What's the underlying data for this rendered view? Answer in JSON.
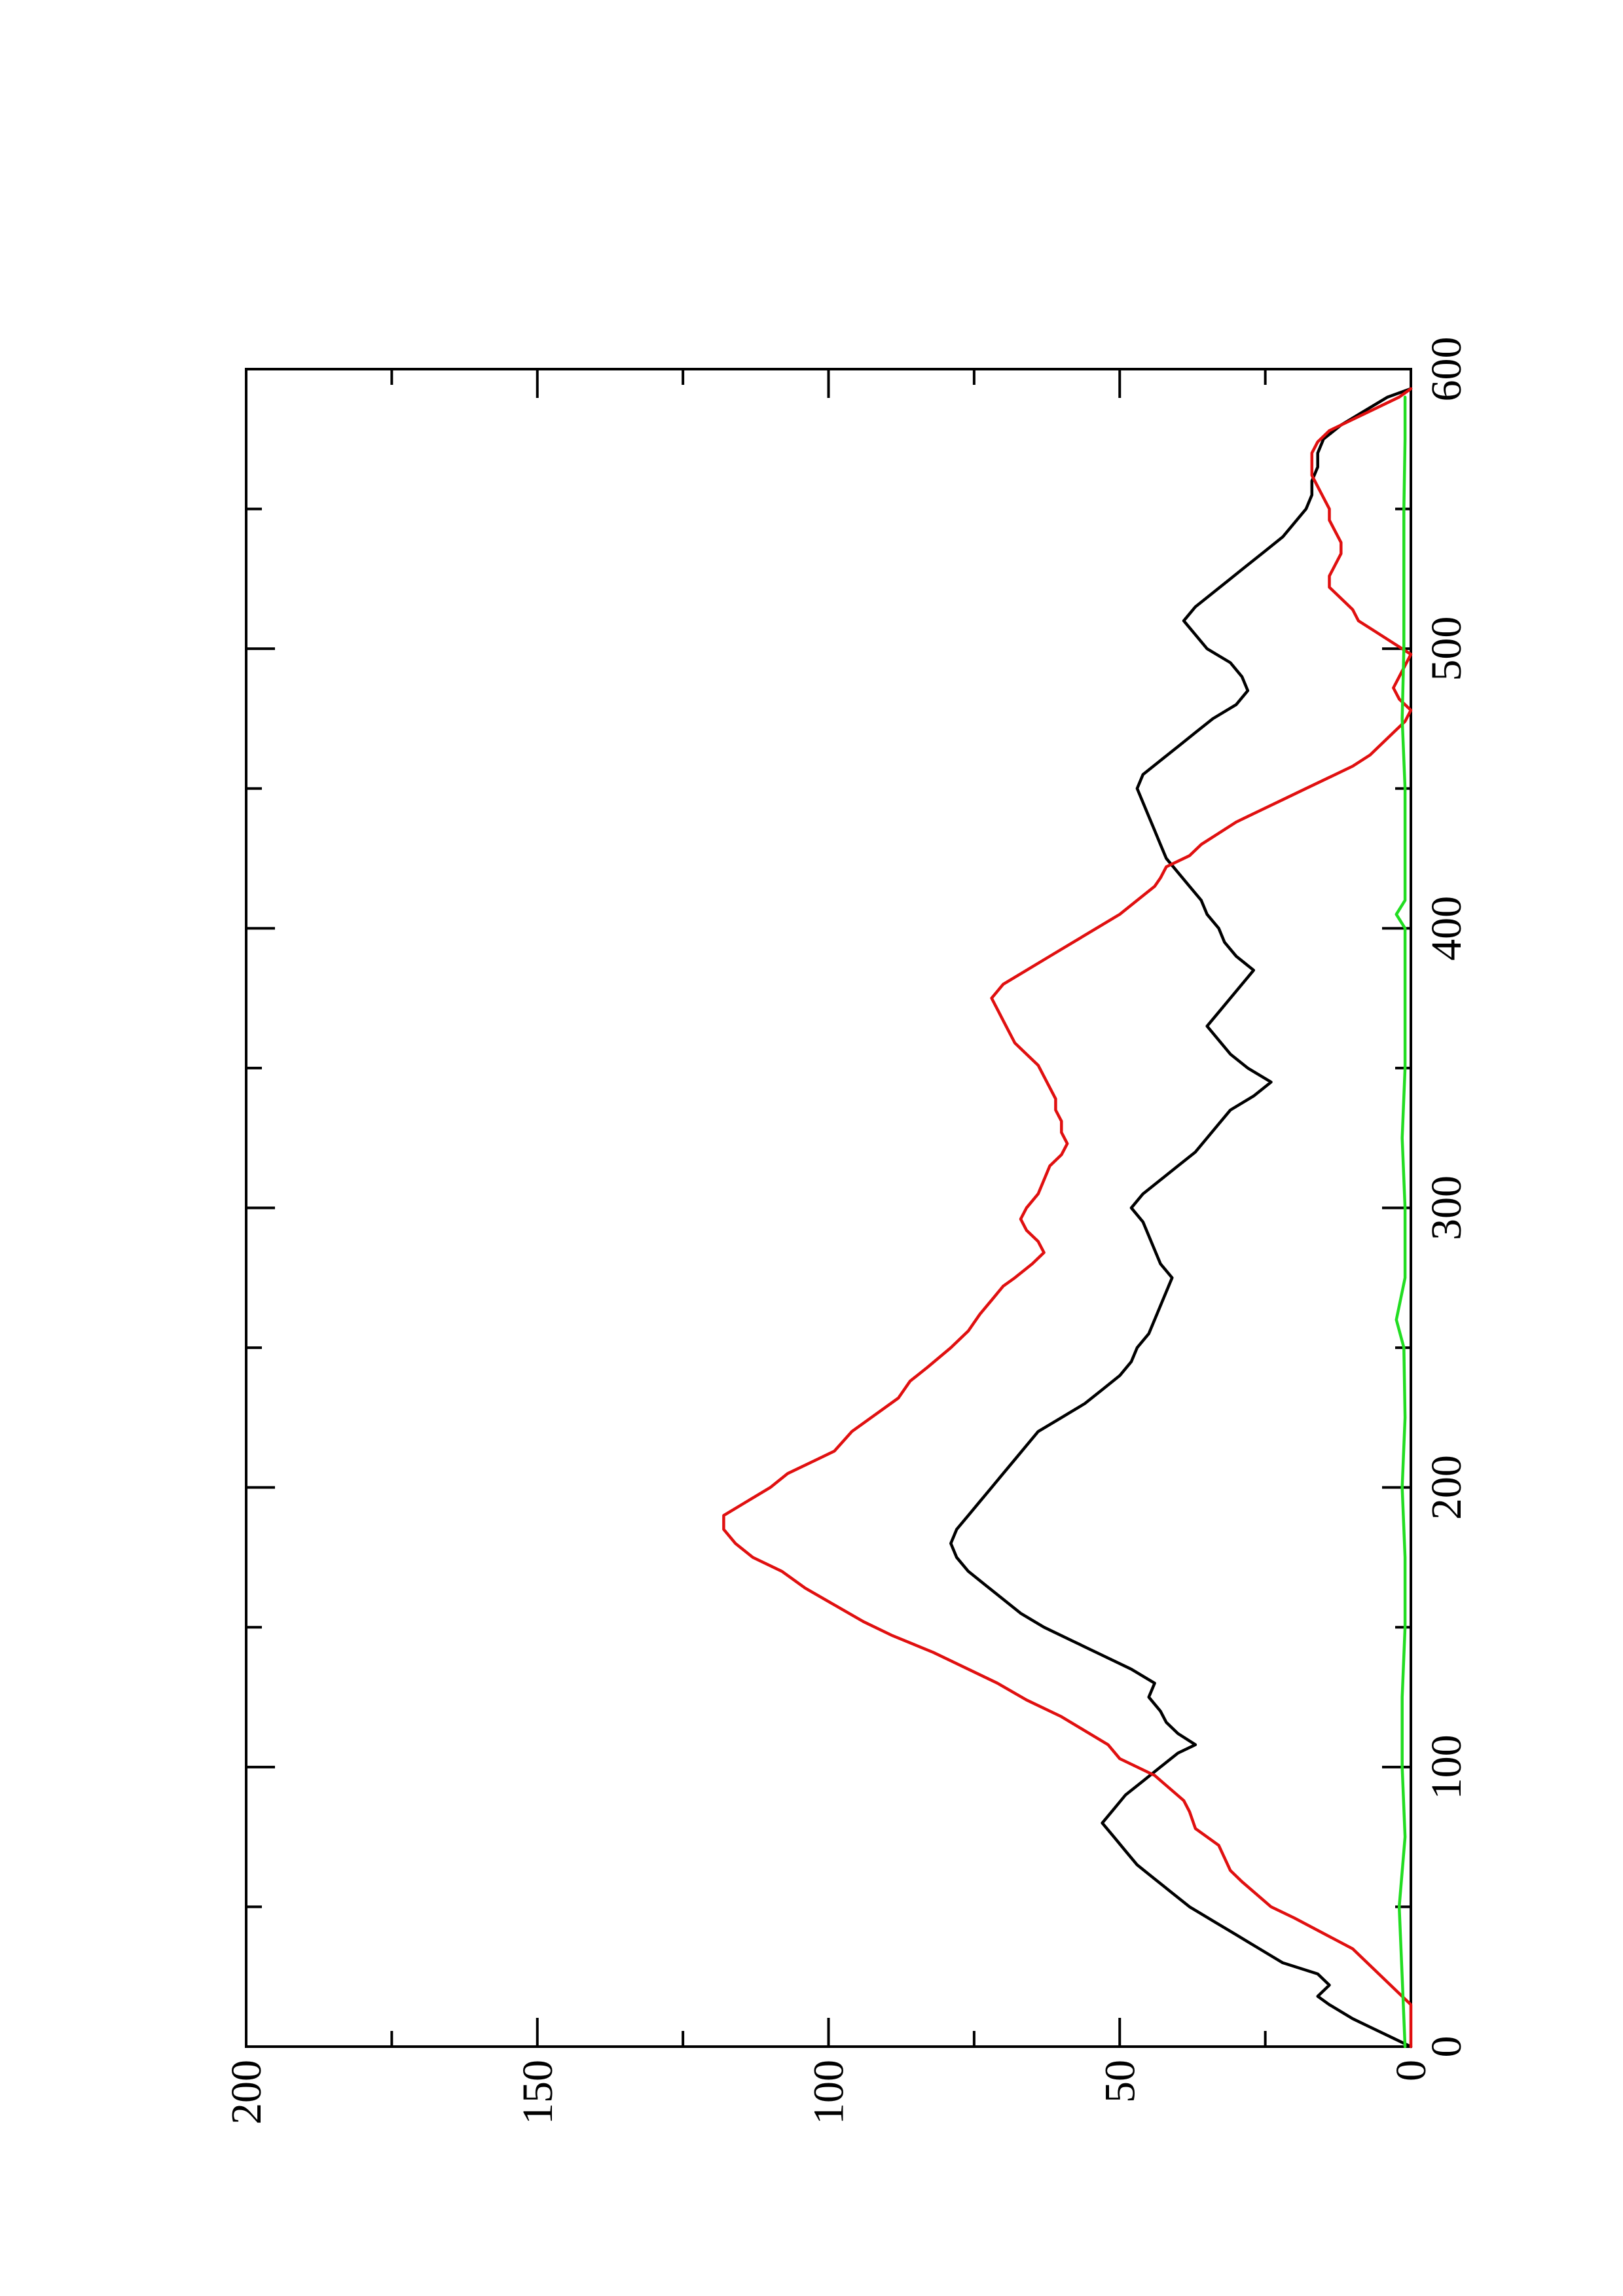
{
  "chart_data": {
    "type": "line",
    "orientation": "rotated 90 degrees counter-clockwise (x axis runs vertically, y axis horizontally)",
    "title": "",
    "xlabel": "",
    "ylabel": "",
    "xlim": [
      0,
      600
    ],
    "ylim": [
      0,
      200
    ],
    "x_ticks": [
      "0",
      "100",
      "200",
      "300",
      "400",
      "500",
      "600"
    ],
    "y_ticks": [
      "0",
      "50",
      "100",
      "150",
      "200"
    ],
    "x_minor_ticks": [
      50,
      150,
      250,
      350,
      450,
      550
    ],
    "y_minor_ticks": [
      25,
      75,
      125,
      175
    ],
    "grid": false,
    "legend": "none",
    "series": [
      {
        "color": "#000000",
        "points": [
          [
            0,
            0
          ],
          [
            3,
            3
          ],
          [
            7,
            7
          ],
          [
            10,
            10
          ],
          [
            15,
            14
          ],
          [
            18,
            16
          ],
          [
            22,
            14
          ],
          [
            26,
            16
          ],
          [
            30,
            22
          ],
          [
            35,
            26
          ],
          [
            40,
            30
          ],
          [
            45,
            34
          ],
          [
            50,
            38
          ],
          [
            55,
            41
          ],
          [
            60,
            44
          ],
          [
            65,
            47
          ],
          [
            70,
            49
          ],
          [
            75,
            51
          ],
          [
            80,
            53
          ],
          [
            85,
            51
          ],
          [
            90,
            49
          ],
          [
            95,
            46
          ],
          [
            100,
            43
          ],
          [
            105,
            40
          ],
          [
            108,
            37
          ],
          [
            112,
            40
          ],
          [
            116,
            42
          ],
          [
            120,
            43
          ],
          [
            125,
            45
          ],
          [
            130,
            44
          ],
          [
            135,
            48
          ],
          [
            140,
            53
          ],
          [
            145,
            58
          ],
          [
            150,
            63
          ],
          [
            155,
            67
          ],
          [
            160,
            70
          ],
          [
            165,
            73
          ],
          [
            170,
            76
          ],
          [
            175,
            78
          ],
          [
            180,
            79
          ],
          [
            185,
            78
          ],
          [
            190,
            76
          ],
          [
            195,
            74
          ],
          [
            200,
            72
          ],
          [
            205,
            70
          ],
          [
            210,
            68
          ],
          [
            215,
            66
          ],
          [
            220,
            64
          ],
          [
            225,
            60
          ],
          [
            230,
            56
          ],
          [
            235,
            53
          ],
          [
            240,
            50
          ],
          [
            245,
            48
          ],
          [
            250,
            47
          ],
          [
            255,
            45
          ],
          [
            260,
            44
          ],
          [
            265,
            43
          ],
          [
            270,
            42
          ],
          [
            275,
            41
          ],
          [
            280,
            43
          ],
          [
            285,
            44
          ],
          [
            290,
            45
          ],
          [
            295,
            46
          ],
          [
            300,
            48
          ],
          [
            305,
            46
          ],
          [
            310,
            43
          ],
          [
            315,
            40
          ],
          [
            320,
            37
          ],
          [
            325,
            35
          ],
          [
            330,
            33
          ],
          [
            335,
            31
          ],
          [
            340,
            27
          ],
          [
            345,
            24
          ],
          [
            350,
            28
          ],
          [
            355,
            31
          ],
          [
            360,
            33
          ],
          [
            365,
            35
          ],
          [
            370,
            33
          ],
          [
            375,
            31
          ],
          [
            380,
            29
          ],
          [
            385,
            27
          ],
          [
            390,
            30
          ],
          [
            395,
            32
          ],
          [
            400,
            33
          ],
          [
            405,
            35
          ],
          [
            410,
            36
          ],
          [
            415,
            38
          ],
          [
            420,
            40
          ],
          [
            425,
            42
          ],
          [
            430,
            43
          ],
          [
            435,
            44
          ],
          [
            440,
            45
          ],
          [
            445,
            46
          ],
          [
            450,
            47
          ],
          [
            455,
            46
          ],
          [
            460,
            43
          ],
          [
            465,
            40
          ],
          [
            470,
            37
          ],
          [
            475,
            34
          ],
          [
            480,
            30
          ],
          [
            485,
            28
          ],
          [
            490,
            29
          ],
          [
            495,
            31
          ],
          [
            500,
            35
          ],
          [
            505,
            37
          ],
          [
            510,
            39
          ],
          [
            515,
            37
          ],
          [
            520,
            34
          ],
          [
            525,
            31
          ],
          [
            530,
            28
          ],
          [
            535,
            25
          ],
          [
            540,
            22
          ],
          [
            545,
            20
          ],
          [
            550,
            18
          ],
          [
            555,
            17
          ],
          [
            560,
            17
          ],
          [
            565,
            16
          ],
          [
            570,
            16
          ],
          [
            575,
            15
          ],
          [
            580,
            12
          ],
          [
            585,
            8
          ],
          [
            590,
            4
          ],
          [
            593,
            0
          ]
        ]
      },
      {
        "color": "#e01010",
        "points": [
          [
            0,
            0
          ],
          [
            15,
            0
          ],
          [
            35,
            10
          ],
          [
            46,
            20
          ],
          [
            50,
            24
          ],
          [
            59,
            29
          ],
          [
            63,
            31
          ],
          [
            72,
            33
          ],
          [
            78,
            37
          ],
          [
            84,
            38
          ],
          [
            88,
            39
          ],
          [
            97,
            44
          ],
          [
            103,
            50
          ],
          [
            108,
            52
          ],
          [
            113,
            56
          ],
          [
            118,
            60
          ],
          [
            124,
            66
          ],
          [
            130,
            71
          ],
          [
            135,
            76
          ],
          [
            141,
            82
          ],
          [
            147,
            89
          ],
          [
            152,
            94
          ],
          [
            158,
            99
          ],
          [
            164,
            104
          ],
          [
            170,
            108
          ],
          [
            175,
            113
          ],
          [
            180,
            116
          ],
          [
            185,
            118
          ],
          [
            190,
            118
          ],
          [
            195,
            114
          ],
          [
            200,
            110
          ],
          [
            205,
            107
          ],
          [
            210,
            102
          ],
          [
            213,
            99
          ],
          [
            220,
            96
          ],
          [
            226,
            92
          ],
          [
            232,
            88
          ],
          [
            238,
            86
          ],
          [
            243,
            83
          ],
          [
            250,
            79
          ],
          [
            256,
            76
          ],
          [
            262,
            74
          ],
          [
            267,
            72
          ],
          [
            272,
            70
          ],
          [
            275,
            68
          ],
          [
            280,
            65
          ],
          [
            284,
            63
          ],
          [
            288,
            64
          ],
          [
            292,
            66
          ],
          [
            296,
            67
          ],
          [
            300,
            66
          ],
          [
            305,
            64
          ],
          [
            310,
            63
          ],
          [
            315,
            62
          ],
          [
            319,
            60
          ],
          [
            323,
            59
          ],
          [
            327,
            60
          ],
          [
            331,
            60
          ],
          [
            335,
            61
          ],
          [
            339,
            61
          ],
          [
            343,
            62
          ],
          [
            347,
            63
          ],
          [
            351,
            64
          ],
          [
            355,
            66
          ],
          [
            359,
            68
          ],
          [
            363,
            69
          ],
          [
            367,
            70
          ],
          [
            371,
            71
          ],
          [
            375,
            72
          ],
          [
            380,
            70
          ],
          [
            385,
            66
          ],
          [
            390,
            62
          ],
          [
            395,
            58
          ],
          [
            400,
            54
          ],
          [
            405,
            50
          ],
          [
            410,
            47
          ],
          [
            415,
            44
          ],
          [
            418,
            43
          ],
          [
            422,
            42
          ],
          [
            426,
            38
          ],
          [
            430,
            36
          ],
          [
            434,
            33
          ],
          [
            438,
            30
          ],
          [
            442,
            26
          ],
          [
            446,
            22
          ],
          [
            450,
            18
          ],
          [
            454,
            14
          ],
          [
            458,
            10
          ],
          [
            462,
            7
          ],
          [
            466,
            5
          ],
          [
            470,
            3
          ],
          [
            474,
            1
          ],
          [
            478,
            0
          ],
          [
            482,
            2
          ],
          [
            486,
            3
          ],
          [
            490,
            2
          ],
          [
            494,
            1
          ],
          [
            498,
            0
          ],
          [
            502,
            3
          ],
          [
            506,
            6
          ],
          [
            510,
            9
          ],
          [
            514,
            10
          ],
          [
            518,
            12
          ],
          [
            522,
            14
          ],
          [
            526,
            14
          ],
          [
            530,
            13
          ],
          [
            534,
            12
          ],
          [
            538,
            12
          ],
          [
            542,
            13
          ],
          [
            546,
            14
          ],
          [
            550,
            14
          ],
          [
            554,
            15
          ],
          [
            558,
            16
          ],
          [
            562,
            17
          ],
          [
            566,
            17
          ],
          [
            570,
            17
          ],
          [
            574,
            16
          ],
          [
            578,
            14
          ],
          [
            582,
            10
          ],
          [
            586,
            6
          ],
          [
            590,
            2
          ],
          [
            593,
            0
          ]
        ]
      },
      {
        "color": "#22dd22",
        "points": [
          [
            0,
            1
          ],
          [
            25,
            1.5
          ],
          [
            50,
            2
          ],
          [
            75,
            1
          ],
          [
            100,
            1.5
          ],
          [
            125,
            1.5
          ],
          [
            150,
            1
          ],
          [
            175,
            1
          ],
          [
            200,
            1.5
          ],
          [
            225,
            1
          ],
          [
            250,
            1.2
          ],
          [
            260,
            2.5
          ],
          [
            275,
            1
          ],
          [
            300,
            1
          ],
          [
            325,
            1.5
          ],
          [
            350,
            1
          ],
          [
            375,
            1
          ],
          [
            400,
            1
          ],
          [
            405,
            2.5
          ],
          [
            410,
            1
          ],
          [
            425,
            1
          ],
          [
            450,
            1
          ],
          [
            475,
            1.5
          ],
          [
            500,
            1.2
          ],
          [
            525,
            1.2
          ],
          [
            550,
            1.2
          ],
          [
            575,
            1
          ],
          [
            590,
            1
          ]
        ]
      }
    ]
  }
}
